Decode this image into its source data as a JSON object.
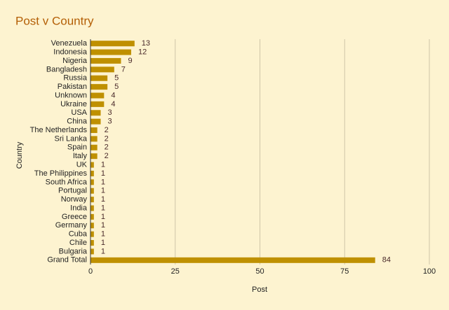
{
  "chart_data": {
    "type": "bar",
    "orientation": "horizontal",
    "title": "Post v Country",
    "x_label": "Post",
    "y_label": "Country",
    "categories": [
      "Venezuela",
      "Indonesia",
      "Nigeria",
      "Bangladesh",
      "Russia",
      "Pakistan",
      "Unknown",
      "Ukraine",
      "USA",
      "China",
      "The Netherlands",
      "Sri Lanka",
      "Spain",
      "Italy",
      "UK",
      "The Philippines",
      "South Africa",
      "Portugal",
      "Norway",
      "India",
      "Greece",
      "Germany",
      "Cuba",
      "Chile",
      "Bulgaria",
      "Grand Total"
    ],
    "values": [
      13,
      12,
      9,
      7,
      5,
      5,
      4,
      4,
      3,
      3,
      2,
      2,
      2,
      2,
      1,
      1,
      1,
      1,
      1,
      1,
      1,
      1,
      1,
      1,
      1,
      84
    ],
    "color": "#bf9000",
    "xlim": [
      0,
      100
    ],
    "xticks": [
      0,
      25,
      50,
      75,
      100
    ],
    "grid": true
  }
}
